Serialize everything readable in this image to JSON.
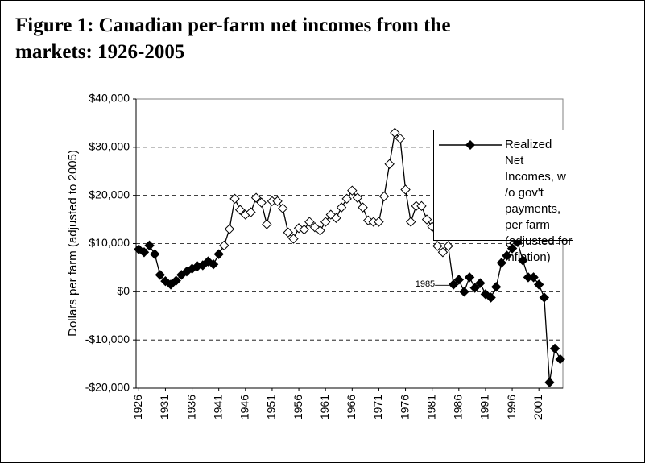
{
  "chart_data": {
    "type": "line",
    "title": "Figure 1: Canadian per-farm net incomes from the markets: 1926-2005",
    "y_label": "Dollars per farm (adjusted to 2005)",
    "annotation": {
      "text": "1985",
      "x": 1985
    },
    "x": [
      1926,
      1927,
      1928,
      1929,
      1930,
      1931,
      1932,
      1933,
      1934,
      1935,
      1936,
      1937,
      1938,
      1939,
      1940,
      1941,
      1942,
      1943,
      1944,
      1945,
      1946,
      1947,
      1948,
      1949,
      1950,
      1951,
      1952,
      1953,
      1954,
      1955,
      1956,
      1957,
      1958,
      1959,
      1960,
      1961,
      1962,
      1963,
      1964,
      1965,
      1966,
      1967,
      1968,
      1969,
      1970,
      1971,
      1972,
      1973,
      1974,
      1975,
      1976,
      1977,
      1978,
      1979,
      1980,
      1981,
      1982,
      1983,
      1984,
      1985,
      1986,
      1987,
      1988,
      1989,
      1990,
      1991,
      1992,
      1993,
      1994,
      1995,
      1996,
      1997,
      1998,
      1999,
      2000,
      2001,
      2002,
      2003,
      2004,
      2005
    ],
    "series": [
      {
        "name": "Realized Net Incomes, w /o gov't payments, per farm (adjusted for inflation)",
        "color": "#000000",
        "values": [
          8800,
          8200,
          9600,
          7800,
          3500,
          2200,
          1500,
          2300,
          3500,
          4200,
          4800,
          5300,
          5500,
          6300,
          5700,
          7800,
          9600,
          13000,
          19300,
          17000,
          16000,
          16500,
          19500,
          18500,
          14000,
          18800,
          18800,
          17300,
          12300,
          11000,
          13200,
          12900,
          14500,
          13400,
          12700,
          14500,
          16000,
          15300,
          17500,
          19300,
          21000,
          19500,
          17500,
          14800,
          14500,
          14500,
          19800,
          26500,
          33000,
          31800,
          21200,
          14500,
          17800,
          17800,
          15000,
          13500,
          9500,
          8200,
          9500,
          1500,
          2500,
          0,
          3000,
          800,
          1800,
          -500,
          -1200,
          1000,
          6000,
          7500,
          9000,
          10300,
          6500,
          3000,
          3000,
          1500,
          -1200,
          -18800,
          -11800,
          -14000
        ]
      }
    ],
    "open_marker_range": [
      1942,
      1984
    ],
    "xlim": [
      1925.5,
      2005.5
    ],
    "xticks": [
      1926,
      1931,
      1936,
      1941,
      1946,
      1951,
      1956,
      1961,
      1966,
      1971,
      1976,
      1981,
      1986,
      1991,
      1996,
      2001
    ],
    "ylim": [
      -20000,
      40000
    ],
    "yticks": [
      {
        "value": -20000,
        "label": "-$20,000"
      },
      {
        "value": -10000,
        "label": "-$10,000"
      },
      {
        "value": 0,
        "label": "$0"
      },
      {
        "value": 10000,
        "label": "$10,000"
      },
      {
        "value": 20000,
        "label": "$20,000"
      },
      {
        "value": 30000,
        "label": "$30,000"
      },
      {
        "value": 40000,
        "label": "$40,000"
      }
    ],
    "grid": true,
    "legend": "upper right"
  }
}
